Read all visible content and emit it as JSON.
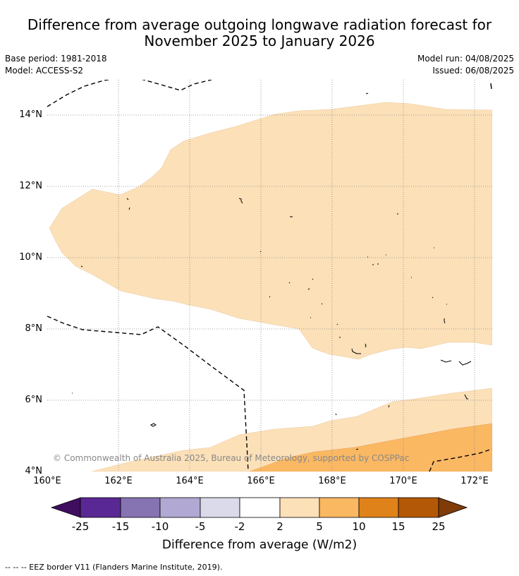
{
  "header": {
    "title_line1": "Difference from average outgoing longwave radiation forecast for",
    "title_line2": "November 2025 to January 2026",
    "base_period": "Base period: 1981-2018",
    "model": "Model: ACCESS-S2",
    "model_run": "Model run: 04/08/2025",
    "issued": "Issued: 06/08/2025"
  },
  "map": {
    "lon_range": [
      160,
      172.5
    ],
    "lat_range": [
      4,
      15
    ],
    "lat_ticks": [
      "4°N",
      "6°N",
      "8°N",
      "10°N",
      "12°N",
      "14°N"
    ],
    "lon_ticks": [
      "160°E",
      "162°E",
      "164°E",
      "166°E",
      "168°E",
      "170°E",
      "172°E"
    ],
    "copyright": "© Commonwealth of Australia 2025, Bureau of Meteorology, supported by COSPPac",
    "gridlines": true
  },
  "colorbar": {
    "tick_labels": [
      "-25",
      "-15",
      "-10",
      "-5",
      "-2",
      "2",
      "5",
      "10",
      "15",
      "25"
    ],
    "colors": [
      "#3f0e5f",
      "#5a2894",
      "#8573b2",
      "#b1a9d3",
      "#dadaeb",
      "#ffffff",
      "#fce0b8",
      "#fab863",
      "#e0821a",
      "#b35806",
      "#7f3b08"
    ],
    "label": "Difference from average (W/m2)"
  },
  "legend": {
    "eez_text": "-- -- -- EEZ border V11 (Flanders Marine Institute, 2019)."
  }
}
